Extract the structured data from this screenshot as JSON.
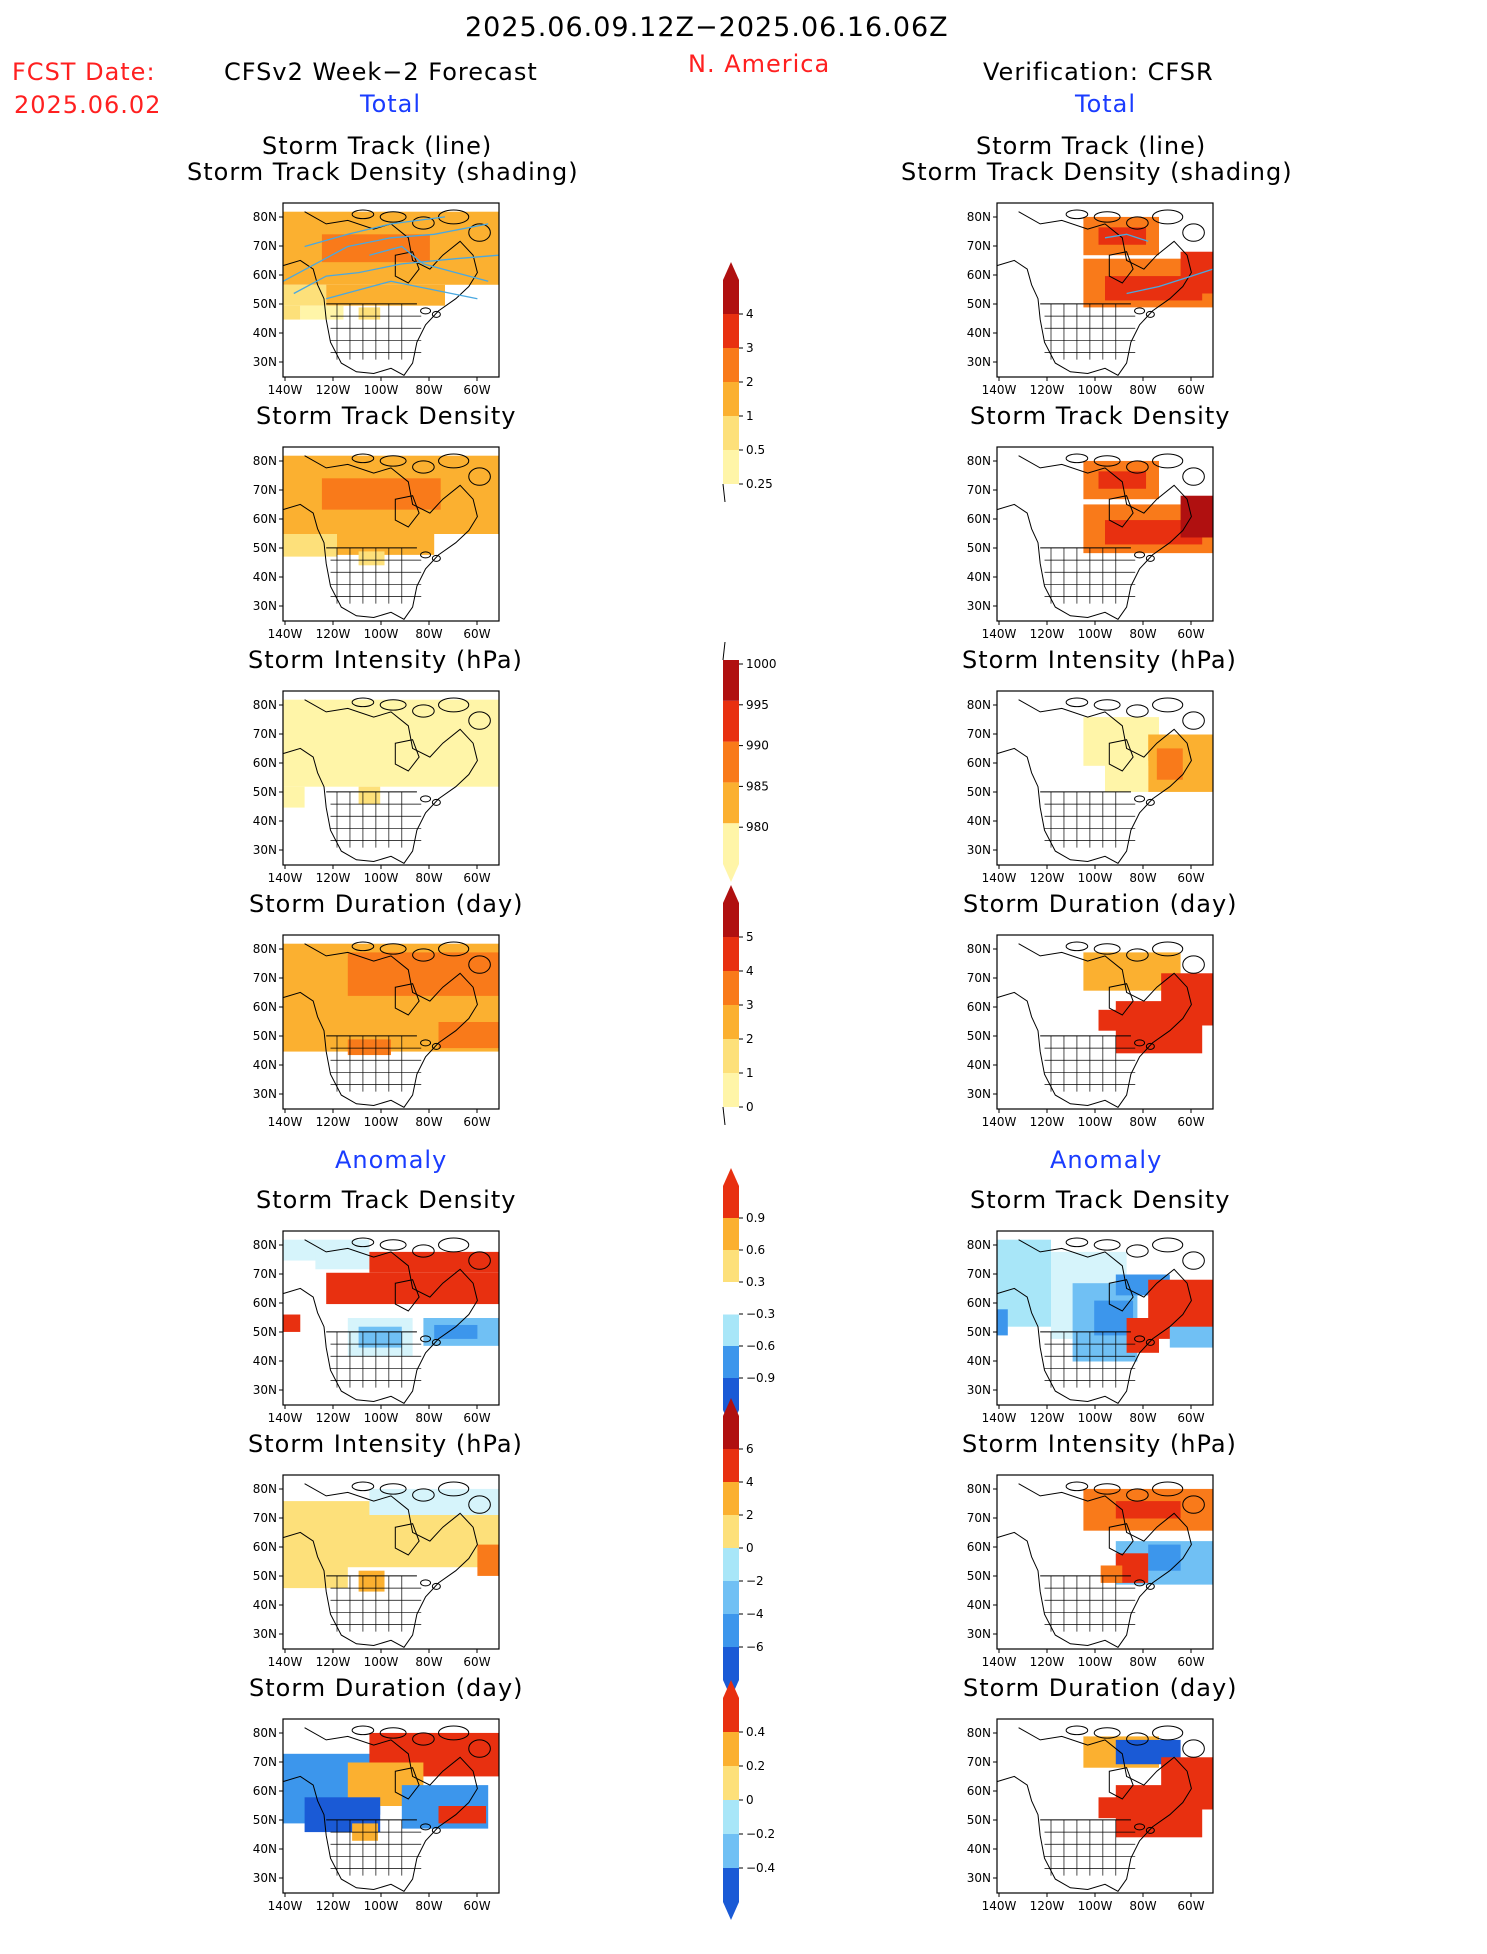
{
  "header": {
    "period": "2025.06.09.12Z−2025.06.16.06Z",
    "region": "N. America",
    "fcst_label": "FCST Date:",
    "fcst_date": "2025.06.02",
    "left_title": "CFSv2 Week−2 Forecast",
    "right_title": "Verification: CFSR",
    "total_label": "Total",
    "anomaly_label": "Anomaly"
  },
  "rows": [
    {
      "title_line1": "Storm Track (line)",
      "title_line2": "Storm Track Density (shading)"
    },
    {
      "title": "Storm Track Density"
    },
    {
      "title": "Storm Intensity (hPa)"
    },
    {
      "title": "Storm Duration (day)"
    },
    {
      "title": "Storm Track Density"
    },
    {
      "title": "Storm Intensity (hPa)"
    },
    {
      "title": "Storm Duration (day)"
    }
  ],
  "axes": {
    "lat_labels": [
      "80N",
      "70N",
      "60N",
      "50N",
      "40N",
      "30N"
    ],
    "lon_labels": [
      "140W",
      "120W",
      "100W",
      "80W",
      "60W"
    ]
  },
  "colorbars": [
    {
      "labels": [
        "4",
        "3",
        "2",
        "1",
        "0.5",
        "0.25"
      ]
    },
    {
      "labels": [
        "1000",
        "995",
        "990",
        "985",
        "980"
      ]
    },
    {
      "labels": [
        "5",
        "4",
        "3",
        "2",
        "1",
        "0"
      ]
    },
    {
      "labels": [
        "0.9",
        "0.6",
        "0.3",
        "−0.3",
        "−0.6",
        "−0.9"
      ]
    },
    {
      "labels": [
        "6",
        "4",
        "2",
        "0",
        "−2",
        "−4",
        "−6"
      ]
    },
    {
      "labels": [
        "0.4",
        "0.2",
        "0",
        "−0.2",
        "−0.4"
      ]
    }
  ],
  "colors": {
    "title_red": "#ff2020",
    "label_blue": "#1a3cff",
    "track_line": "#4aa8e0",
    "warm": [
      "#fff5a8",
      "#fde07a",
      "#fbb030",
      "#f97a1a",
      "#e83010",
      "#b01010"
    ],
    "cool": [
      "#d6f4fb",
      "#a8e6f8",
      "#70c0f4",
      "#3c96ec",
      "#1a5ad6"
    ]
  }
}
